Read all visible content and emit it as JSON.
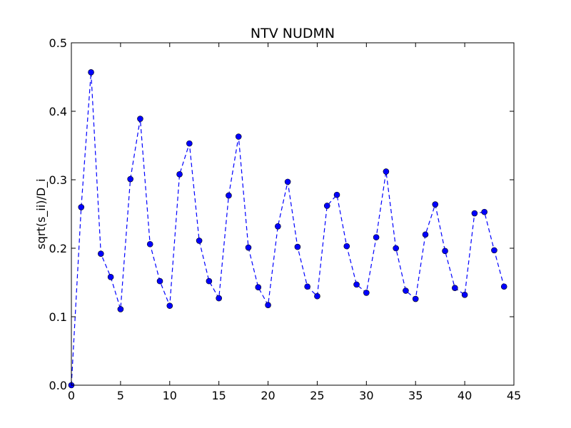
{
  "chart_data": {
    "type": "line",
    "title": "NTV NUDMN",
    "xlabel": "",
    "ylabel": "sqrt(s_ii)/D_i",
    "xlim": [
      0,
      45
    ],
    "ylim": [
      0.0,
      0.5
    ],
    "xticks": [
      "0",
      "5",
      "10",
      "15",
      "20",
      "25",
      "30",
      "35",
      "40",
      "45"
    ],
    "yticks": [
      "0.0",
      "0.1",
      "0.2",
      "0.3",
      "0.4",
      "0.5"
    ],
    "grid": false,
    "series": [
      {
        "color": "#0000ff",
        "line_style": "dashed",
        "marker": "circle",
        "x": [
          0,
          1,
          2,
          3,
          4,
          5,
          6,
          7,
          8,
          9,
          10,
          11,
          12,
          13,
          14,
          15,
          16,
          17,
          18,
          19,
          20,
          21,
          22,
          23,
          24,
          25,
          26,
          27,
          28,
          29,
          30,
          31,
          32,
          33,
          34,
          35,
          36,
          37,
          38,
          39,
          40,
          41,
          42,
          43,
          44
        ],
        "y": [
          0.0,
          0.26,
          0.457,
          0.192,
          0.158,
          0.111,
          0.301,
          0.389,
          0.206,
          0.152,
          0.116,
          0.308,
          0.353,
          0.211,
          0.152,
          0.127,
          0.277,
          0.363,
          0.201,
          0.143,
          0.117,
          0.232,
          0.297,
          0.202,
          0.144,
          0.13,
          0.262,
          0.278,
          0.203,
          0.147,
          0.135,
          0.216,
          0.312,
          0.2,
          0.138,
          0.126,
          0.22,
          0.264,
          0.196,
          0.142,
          0.132,
          0.251,
          0.253,
          0.197,
          0.144
        ]
      }
    ]
  }
}
